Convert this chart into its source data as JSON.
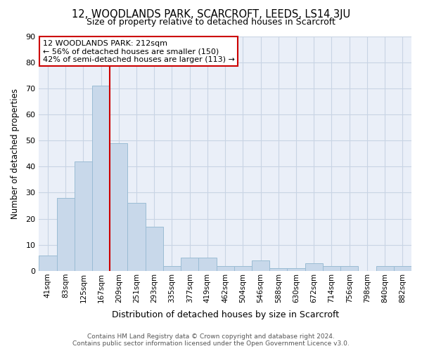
{
  "title": "12, WOODLANDS PARK, SCARCROFT, LEEDS, LS14 3JU",
  "subtitle": "Size of property relative to detached houses in Scarcroft",
  "xlabel": "Distribution of detached houses by size in Scarcroft",
  "ylabel": "Number of detached properties",
  "categories": [
    "41sqm",
    "83sqm",
    "125sqm",
    "167sqm",
    "209sqm",
    "251sqm",
    "293sqm",
    "335sqm",
    "377sqm",
    "419sqm",
    "462sqm",
    "504sqm",
    "546sqm",
    "588sqm",
    "630sqm",
    "672sqm",
    "714sqm",
    "756sqm",
    "798sqm",
    "840sqm",
    "882sqm"
  ],
  "bar_values": [
    6,
    28,
    42,
    71,
    49,
    26,
    17,
    2,
    5,
    5,
    2,
    2,
    4,
    1,
    1,
    3,
    2,
    2,
    0,
    2,
    2
  ],
  "bar_color": "#c8d8ea",
  "bar_edge_color": "#9bbcd4",
  "vline_index": 4,
  "vline_color": "#cc0000",
  "property_label": "12 WOODLANDS PARK: 212sqm",
  "annotation_line1": "← 56% of detached houses are smaller (150)",
  "annotation_line2": "42% of semi-detached houses are larger (113) →",
  "annotation_box_color": "white",
  "annotation_box_edge": "#cc0000",
  "ylim": [
    0,
    90
  ],
  "yticks": [
    0,
    10,
    20,
    30,
    40,
    50,
    60,
    70,
    80,
    90
  ],
  "grid_color": "#c8d4e4",
  "footer_line1": "Contains HM Land Registry data © Crown copyright and database right 2024.",
  "footer_line2": "Contains public sector information licensed under the Open Government Licence v3.0.",
  "bg_color": "#eaeff8"
}
